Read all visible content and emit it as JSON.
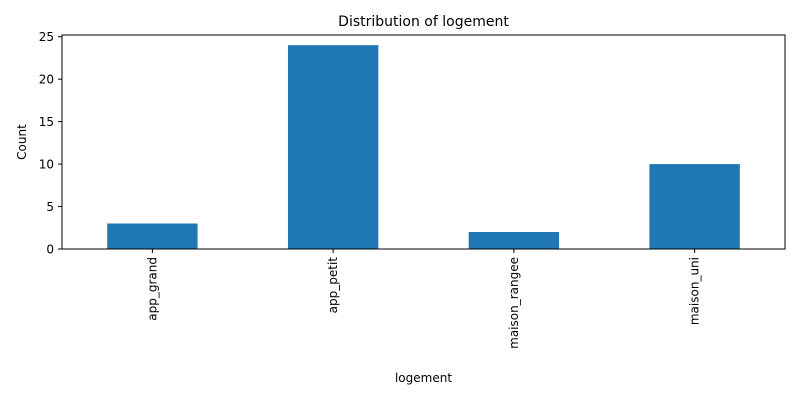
{
  "chart_data": {
    "type": "bar",
    "title": "Distribution of logement",
    "xlabel": "logement",
    "ylabel": "Count",
    "categories": [
      "app_grand",
      "app_petit",
      "maison_rangee",
      "maison_uni"
    ],
    "values": [
      3,
      24,
      2,
      10
    ],
    "ylim": [
      0,
      25.2
    ],
    "yticks": [
      0,
      5,
      10,
      15,
      20,
      25
    ],
    "bar_color": "#1f77b4",
    "grid": false,
    "legend": "none"
  }
}
